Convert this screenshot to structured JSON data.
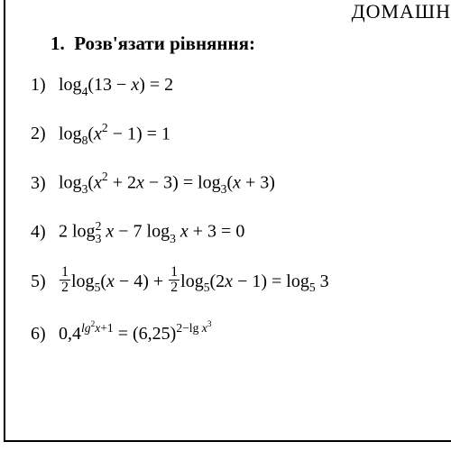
{
  "header_fragment": "ДОМАШН",
  "title_number": "1.",
  "title_text": "Розв'язати рівняння:",
  "equations": [
    {
      "n": "1)",
      "parts": {
        "log": "log",
        "base": "4",
        "open": "(13 − ",
        "x": "x",
        "close": ") = 2"
      }
    },
    {
      "n": "2)",
      "parts": {
        "log": "log",
        "base": "8",
        "open": "(",
        "x": "x",
        "sq": "2",
        "close": " − 1) = 1"
      }
    },
    {
      "n": "3)",
      "parts": {
        "log1": "log",
        "base1": "3",
        "lhs_open": "(",
        "x1": "x",
        "sq": "2",
        "lhs_mid": " + 2",
        "x2": "x",
        "lhs_close": " − 3) = ",
        "log2": "log",
        "base2": "3",
        "rhs_open": "(",
        "x3": "x",
        "rhs_close": " + 3)"
      }
    },
    {
      "n": "4)",
      "parts": {
        "a": "2 ",
        "log1": "log",
        "sup1": "2",
        "sub1": "3",
        "sp1": " ",
        "x1": "x",
        "mid": " − 7 ",
        "log2": "log",
        "sub2": "3",
        "sp2": " ",
        "x2": "x",
        "end": " + 3 = 0"
      }
    },
    {
      "n": "5)",
      "parts": {
        "f1n": "1",
        "f1d": "2",
        "log1": "log",
        "b1": "5",
        "a1o": "(",
        "x1": "x",
        "a1c": " − 4) + ",
        "f2n": "1",
        "f2d": "2",
        "log2": "log",
        "b2": "5",
        "a2o": "(2",
        "x2": "x",
        "a2c": " − 1) = ",
        "log3": "log",
        "b3": "5",
        "end": " 3"
      }
    },
    {
      "n": "6)",
      "parts": {
        "base1": "0,4",
        "e1a": "lg",
        "e1b": "2",
        "e1x": "x",
        "e1c": "+1",
        "eq": " = (6,25)",
        "e2a": "2−lg ",
        "e2x": "x",
        "e2b": "3"
      }
    }
  ],
  "style": {
    "bg": "#ffffff",
    "text": "#000000",
    "font_family": "Times New Roman",
    "title_fontsize": 21,
    "eq_fontsize": 20,
    "border_width": 2
  }
}
